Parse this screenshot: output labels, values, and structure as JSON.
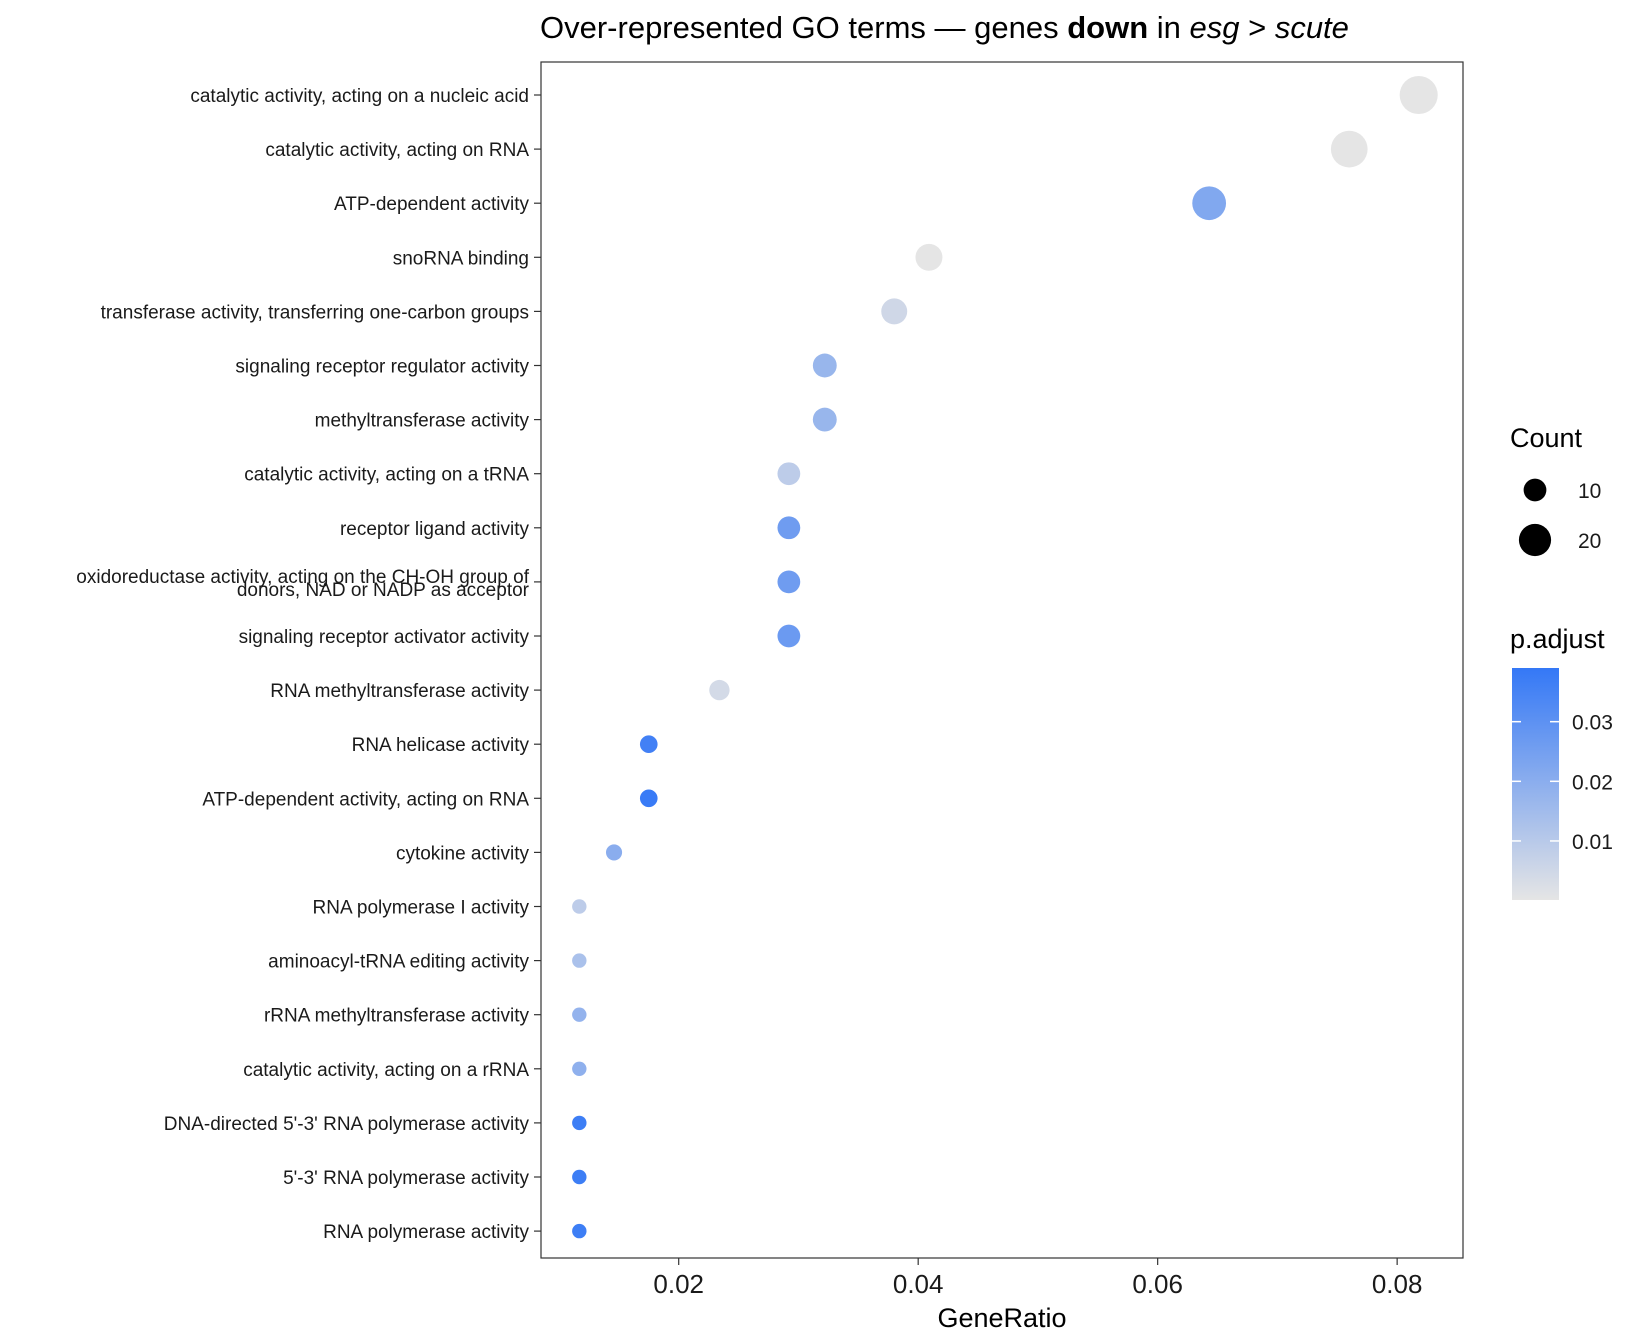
{
  "chart_data": {
    "type": "scatter",
    "title": {
      "part1": "Over-represented GO terms — genes ",
      "bold": "down",
      "part2": " in ",
      "italic1": "esg",
      "part3": " > ",
      "italic2": "scute"
    },
    "xlabel": "GeneRatio",
    "ylabel": "",
    "xlim": [
      0.0085,
      0.0855
    ],
    "xticks": [
      {
        "value": 0.02,
        "label": "0.02"
      },
      {
        "value": 0.04,
        "label": "0.04"
      },
      {
        "value": 0.06,
        "label": "0.06"
      },
      {
        "value": 0.08,
        "label": "0.08"
      }
    ],
    "grid": false,
    "points": [
      {
        "term": [
          "catalytic activity, acting on a nucleic acid"
        ],
        "x": 0.0818,
        "count": 28,
        "padj": 0.0001
      },
      {
        "term": [
          "catalytic activity, acting on RNA"
        ],
        "x": 0.076,
        "count": 26,
        "padj": 0.0001
      },
      {
        "term": [
          "ATP-dependent activity"
        ],
        "x": 0.0643,
        "count": 22,
        "padj": 0.022
      },
      {
        "term": [
          "snoRNA binding"
        ],
        "x": 0.0409,
        "count": 14,
        "padj": 0.0002
      },
      {
        "term": [
          "transferase activity, transferring one-carbon groups"
        ],
        "x": 0.038,
        "count": 13,
        "padj": 0.005
      },
      {
        "term": [
          "signaling receptor regulator activity"
        ],
        "x": 0.0322,
        "count": 11,
        "padj": 0.017
      },
      {
        "term": [
          "methyltransferase activity"
        ],
        "x": 0.0322,
        "count": 11,
        "padj": 0.017
      },
      {
        "term": [
          "catalytic activity, acting on a tRNA"
        ],
        "x": 0.0292,
        "count": 10,
        "padj": 0.009
      },
      {
        "term": [
          "receptor ligand activity"
        ],
        "x": 0.0292,
        "count": 10,
        "padj": 0.026
      },
      {
        "term": [
          "oxidoreductase activity, acting on the CH-OH group of",
          "donors, NAD or NADP as acceptor"
        ],
        "x": 0.0292,
        "count": 10,
        "padj": 0.026
      },
      {
        "term": [
          "signaling receptor activator activity"
        ],
        "x": 0.0292,
        "count": 10,
        "padj": 0.027
      },
      {
        "term": [
          "RNA methyltransferase activity"
        ],
        "x": 0.0234,
        "count": 8,
        "padj": 0.004
      },
      {
        "term": [
          "RNA helicase activity"
        ],
        "x": 0.0175,
        "count": 6,
        "padj": 0.036
      },
      {
        "term": [
          "ATP-dependent activity, acting on RNA"
        ],
        "x": 0.0175,
        "count": 6,
        "padj": 0.038
      },
      {
        "term": [
          "cytokine activity"
        ],
        "x": 0.0146,
        "count": 5,
        "padj": 0.02
      },
      {
        "term": [
          "RNA polymerase I activity"
        ],
        "x": 0.0117,
        "count": 4,
        "padj": 0.009
      },
      {
        "term": [
          "aminoacyl-tRNA editing activity"
        ],
        "x": 0.0117,
        "count": 4,
        "padj": 0.013
      },
      {
        "term": [
          "rRNA methyltransferase activity"
        ],
        "x": 0.0117,
        "count": 4,
        "padj": 0.018
      },
      {
        "term": [
          "catalytic activity, acting on a rRNA"
        ],
        "x": 0.0117,
        "count": 4,
        "padj": 0.019
      },
      {
        "term": [
          "DNA-directed 5'-3' RNA polymerase activity"
        ],
        "x": 0.0117,
        "count": 4,
        "padj": 0.037
      },
      {
        "term": [
          "5'-3' RNA polymerase activity"
        ],
        "x": 0.0117,
        "count": 4,
        "padj": 0.037
      },
      {
        "term": [
          "RNA polymerase activity"
        ],
        "x": 0.0117,
        "count": 4,
        "padj": 0.037
      }
    ],
    "size_legend": {
      "title": "Count",
      "entries": [
        {
          "value": 10,
          "label": "10"
        },
        {
          "value": 20,
          "label": "20"
        }
      ]
    },
    "color_legend": {
      "title": "p.adjust",
      "range": [
        0.0001,
        0.039
      ],
      "ticks": [
        {
          "value": 0.01,
          "label": "0.01"
        },
        {
          "value": 0.02,
          "label": "0.02"
        },
        {
          "value": 0.03,
          "label": "0.03"
        }
      ],
      "low_color": "#e5e5e5",
      "high_color": "#3478f6"
    },
    "legend_position": "right"
  }
}
